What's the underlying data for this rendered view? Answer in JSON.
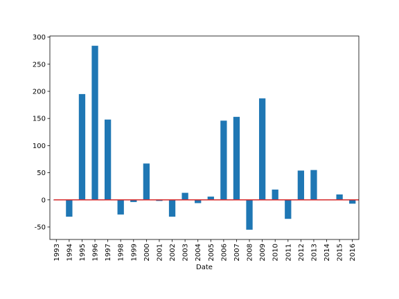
{
  "chart_data": {
    "type": "bar",
    "title": "",
    "xlabel": "Date",
    "ylabel": "",
    "categories": [
      "1993",
      "1994",
      "1995",
      "1996",
      "1997",
      "1998",
      "1999",
      "2000",
      "2001",
      "2002",
      "2003",
      "2004",
      "2005",
      "2006",
      "2007",
      "2008",
      "2009",
      "2010",
      "2011",
      "2012",
      "2013",
      "2014",
      "2015",
      "2016"
    ],
    "values": [
      0,
      -31,
      195,
      284,
      148,
      -27,
      -4,
      67,
      -2,
      -31,
      13,
      -6,
      6,
      146,
      153,
      -55,
      187,
      19,
      -35,
      54,
      55,
      1,
      10,
      -7
    ],
    "ylim": [
      -73,
      302
    ],
    "yticks": [
      -50,
      0,
      50,
      100,
      150,
      200,
      250,
      300
    ],
    "bar_color": "#1f77b4",
    "reference_line": {
      "y": 0,
      "color": "#d62728"
    },
    "grid": false,
    "legend": "none"
  }
}
